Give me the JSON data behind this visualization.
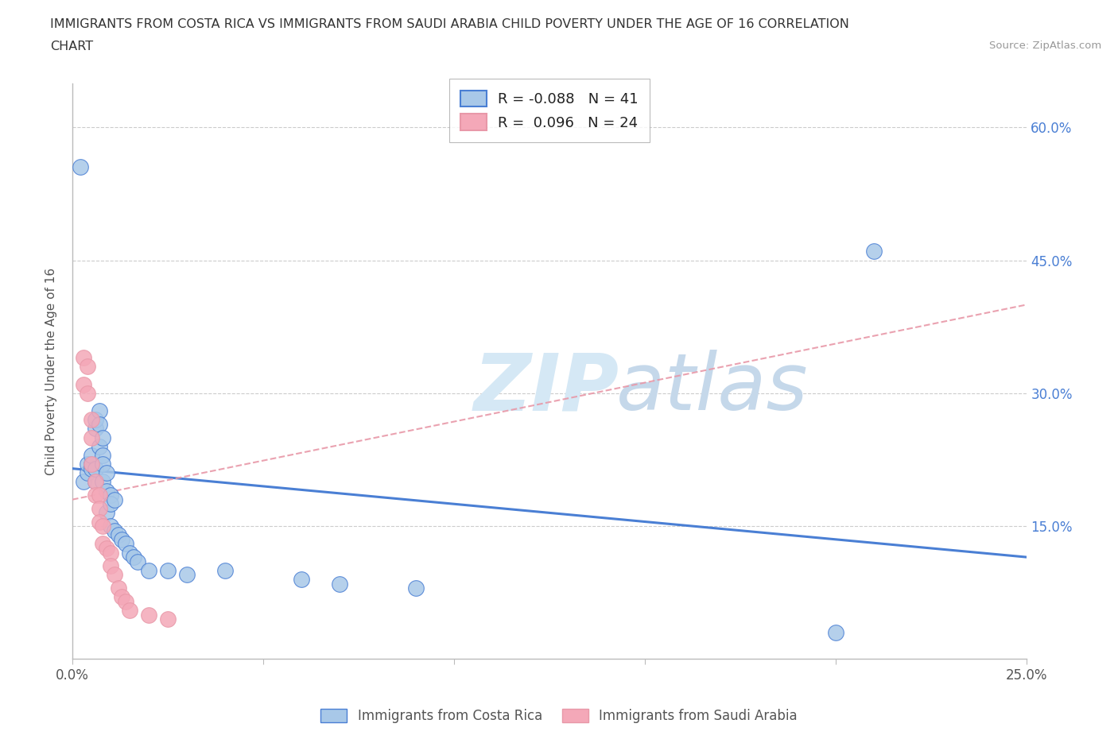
{
  "title_line1": "IMMIGRANTS FROM COSTA RICA VS IMMIGRANTS FROM SAUDI ARABIA CHILD POVERTY UNDER THE AGE OF 16 CORRELATION",
  "title_line2": "CHART",
  "source_text": "Source: ZipAtlas.com",
  "ylabel": "Child Poverty Under the Age of 16",
  "xlim": [
    0.0,
    0.25
  ],
  "ylim": [
    0.0,
    0.65
  ],
  "yticks": [
    0.15,
    0.3,
    0.45,
    0.6
  ],
  "right_ytick_labels": [
    "15.0%",
    "30.0%",
    "45.0%",
    "60.0%"
  ],
  "legend_R1": "-0.088",
  "legend_N1": "41",
  "legend_R2": "0.096",
  "legend_N2": "24",
  "color_costa_rica": "#a8c8e8",
  "color_saudi_arabia": "#f4a8b8",
  "color_line_costa_rica": "#4a7fd4",
  "color_line_saudi_arabia": "#e898a8",
  "watermark_zip": "ZIP",
  "watermark_atlas": "atlas",
  "background_color": "#ffffff",
  "grid_color": "#cccccc",
  "cr_x": [
    0.002,
    0.003,
    0.004,
    0.004,
    0.005,
    0.005,
    0.005,
    0.006,
    0.006,
    0.006,
    0.006,
    0.007,
    0.007,
    0.007,
    0.008,
    0.008,
    0.008,
    0.008,
    0.009,
    0.009,
    0.009,
    0.01,
    0.01,
    0.01,
    0.011,
    0.011,
    0.012,
    0.013,
    0.014,
    0.015,
    0.016,
    0.017,
    0.02,
    0.025,
    0.03,
    0.04,
    0.06,
    0.07,
    0.09,
    0.2,
    0.21
  ],
  "cr_y": [
    0.555,
    0.2,
    0.21,
    0.22,
    0.215,
    0.22,
    0.23,
    0.26,
    0.27,
    0.2,
    0.215,
    0.28,
    0.265,
    0.24,
    0.23,
    0.22,
    0.25,
    0.2,
    0.21,
    0.19,
    0.165,
    0.185,
    0.175,
    0.15,
    0.18,
    0.145,
    0.14,
    0.135,
    0.13,
    0.12,
    0.115,
    0.11,
    0.1,
    0.1,
    0.095,
    0.1,
    0.09,
    0.085,
    0.08,
    0.03,
    0.46
  ],
  "sa_x": [
    0.003,
    0.003,
    0.004,
    0.004,
    0.005,
    0.005,
    0.005,
    0.006,
    0.006,
    0.007,
    0.007,
    0.007,
    0.008,
    0.008,
    0.009,
    0.01,
    0.01,
    0.011,
    0.012,
    0.013,
    0.014,
    0.015,
    0.02,
    0.025
  ],
  "sa_y": [
    0.34,
    0.31,
    0.33,
    0.3,
    0.27,
    0.25,
    0.22,
    0.2,
    0.185,
    0.185,
    0.17,
    0.155,
    0.15,
    0.13,
    0.125,
    0.12,
    0.105,
    0.095,
    0.08,
    0.07,
    0.065,
    0.055,
    0.05,
    0.045
  ]
}
